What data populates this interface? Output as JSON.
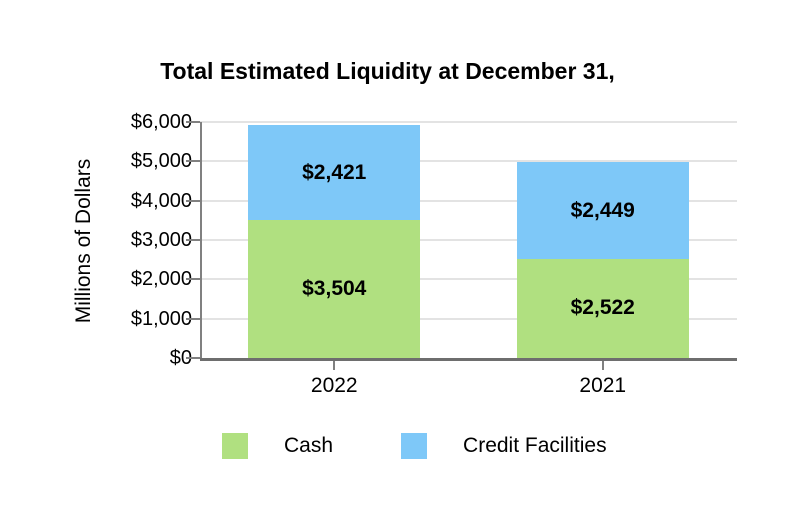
{
  "chart_data": {
    "type": "bar",
    "stacked": true,
    "title": "Total Estimated Liquidity at December 31,",
    "xlabel": "",
    "ylabel": "Millions of Dollars",
    "categories": [
      "2022",
      "2021"
    ],
    "series": [
      {
        "name": "Cash",
        "color": "#B0E080",
        "values": [
          3504,
          2522
        ],
        "labels": [
          "$3,504",
          "$2,522"
        ]
      },
      {
        "name": "Credit Facilities",
        "color": "#7EC8F8",
        "values": [
          2421,
          2449
        ],
        "labels": [
          "$2,421",
          "$2,449"
        ]
      }
    ],
    "totals": [
      5925,
      4971
    ],
    "ylim": [
      0,
      6000
    ],
    "y_tick_step": 1000,
    "y_tick_labels": [
      "$0",
      "$1,000",
      "$2,000",
      "$3,000",
      "$4,000",
      "$5,000",
      "$6,000"
    ],
    "grid": true,
    "legend_position": "bottom",
    "colors": {
      "grid": "#E3E3E3",
      "axis": "#808080",
      "axis_bottom": "#6E6E6E",
      "text": "#000000",
      "background": "#FFFFFF"
    }
  }
}
